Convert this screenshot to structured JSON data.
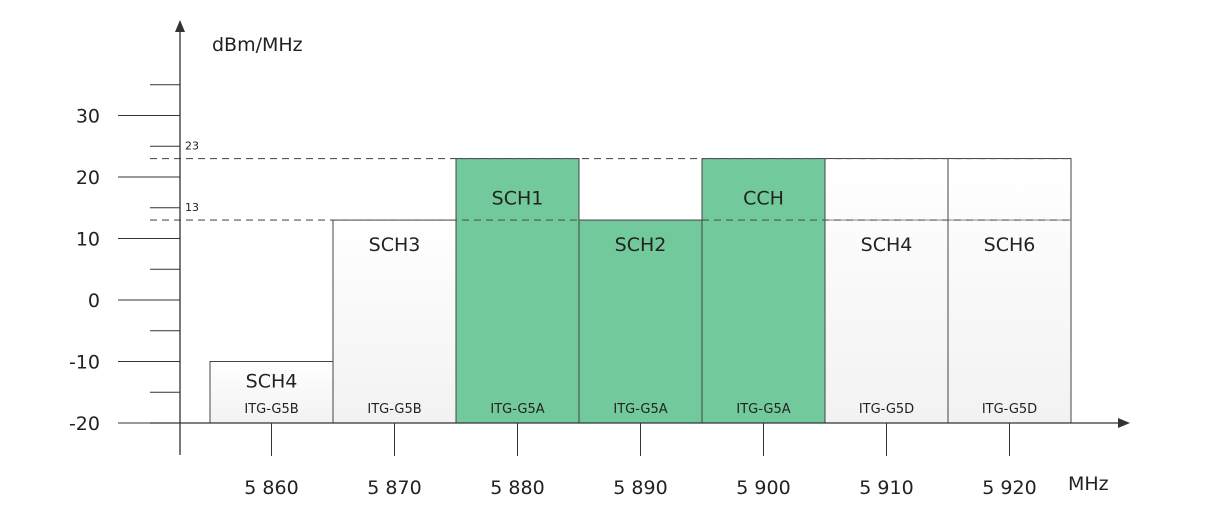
{
  "chart_data": {
    "type": "bar",
    "ylabel": "dBm/MHz",
    "xlabel": "MHz",
    "ylim": [
      -20,
      40
    ],
    "xlim": [
      5855,
      5925
    ],
    "y_tick_labels": [
      {
        "value": 30,
        "label": "30"
      },
      {
        "value": 20,
        "label": "20"
      },
      {
        "value": 10,
        "label": "10"
      },
      {
        "value": 0,
        "label": "0"
      },
      {
        "value": -10,
        "label": "-10"
      },
      {
        "value": -20,
        "label": "-20"
      }
    ],
    "y_minor_ticks": [
      35,
      25,
      15,
      5,
      -5,
      -15
    ],
    "x_ticks": [
      {
        "value": 5860,
        "label": "5 860"
      },
      {
        "value": 5870,
        "label": "5 870"
      },
      {
        "value": 5880,
        "label": "5 880"
      },
      {
        "value": 5890,
        "label": "5 890"
      },
      {
        "value": 5900,
        "label": "5 900"
      },
      {
        "value": 5910,
        "label": "5 910"
      },
      {
        "value": 5920,
        "label": "5 920"
      }
    ],
    "reference_lines": [
      {
        "value": 23,
        "label": "23"
      },
      {
        "value": 13,
        "label": "13"
      }
    ],
    "bars": [
      {
        "name": "SCH4",
        "band": "ITG-G5B",
        "from": 5855,
        "to": 5865,
        "value": -10,
        "highlight": false
      },
      {
        "name": "SCH3",
        "band": "ITG-G5B",
        "from": 5865,
        "to": 5875,
        "value": 13,
        "highlight": false
      },
      {
        "name": "SCH1",
        "band": "ITG-G5A",
        "from": 5875,
        "to": 5885,
        "value": 23,
        "highlight": true
      },
      {
        "name": "SCH2",
        "band": "ITG-G5A",
        "from": 5885,
        "to": 5895,
        "value": 13,
        "highlight": true
      },
      {
        "name": "CCH",
        "band": "ITG-G5A",
        "from": 5895,
        "to": 5905,
        "value": 23,
        "highlight": true
      },
      {
        "name": "SCH4",
        "band": "ITG-G5D",
        "from": 5905,
        "to": 5915,
        "value": 23,
        "highlight": false,
        "split_at": 13
      },
      {
        "name": "SCH6",
        "band": "ITG-G5D",
        "from": 5915,
        "to": 5925,
        "value": 23,
        "highlight": false,
        "split_at": 13
      }
    ],
    "colors": {
      "highlight_fill": "#72c99b",
      "plain_fill": "#ffffff",
      "plain_fill_alt": "#f7f7f7",
      "stroke": "#444444"
    }
  }
}
